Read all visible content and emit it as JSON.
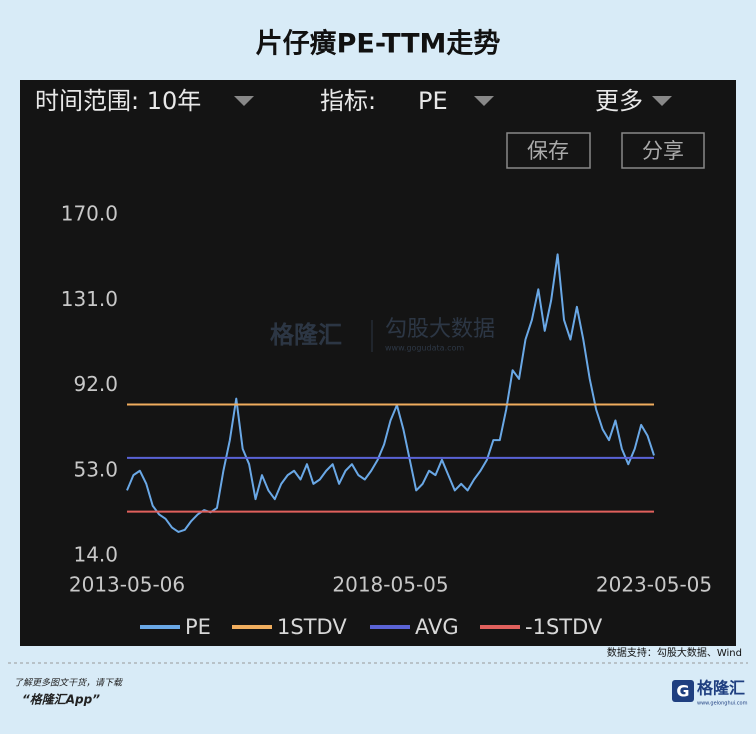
{
  "title": "片仔癀PE-TTM走势",
  "controls": {
    "range_label": "时间范围: 10年",
    "metric_label": "指标:",
    "metric_value": "PE",
    "more": "更多",
    "save": "保存",
    "share": "分享"
  },
  "chart_data": {
    "type": "line",
    "categories": [
      "2013-05-06",
      null,
      null,
      null,
      null,
      null,
      null,
      null,
      null,
      null,
      null,
      null,
      null,
      null,
      null,
      null,
      null,
      null,
      null,
      null,
      null,
      null,
      null,
      null,
      null,
      null,
      null,
      null,
      null,
      null,
      null,
      null,
      null,
      null,
      null,
      null,
      null,
      null,
      null,
      null,
      null,
      "2018-05-05",
      null,
      null,
      null,
      null,
      null,
      null,
      null,
      null,
      null,
      null,
      null,
      null,
      null,
      null,
      null,
      null,
      null,
      null,
      null,
      null,
      null,
      null,
      null,
      null,
      null,
      null,
      null,
      null,
      null,
      null,
      null,
      null,
      null,
      null,
      null,
      null,
      null,
      null,
      null,
      null,
      "2023-05-05"
    ],
    "series": [
      {
        "name": "PE",
        "color": "#6aa8e6",
        "values": [
          44,
          51,
          53,
          47,
          37,
          33,
          31,
          27,
          25,
          26,
          30,
          33,
          35,
          34,
          36,
          53,
          67,
          86,
          63,
          56,
          40,
          51,
          44,
          40,
          47,
          51,
          53,
          49,
          56,
          47,
          49,
          53,
          56,
          47,
          53,
          56,
          51,
          49,
          53,
          58,
          65,
          76,
          83,
          72,
          58,
          44,
          47,
          53,
          51,
          58,
          51,
          44,
          47,
          44,
          49,
          53,
          58,
          67,
          67,
          81,
          99,
          95,
          113,
          122,
          136,
          117,
          131,
          152,
          122,
          113,
          128,
          113,
          95,
          81,
          72,
          67,
          76,
          63,
          56,
          63,
          74,
          69,
          60
        ]
      },
      {
        "name": "1STDV",
        "color": "#f0ad5e",
        "value": 83.3
      },
      {
        "name": "AVG",
        "color": "#5a63d6",
        "value": 58.9
      },
      {
        "name": "-1STDV",
        "color": "#e0605c",
        "value": 34.3
      }
    ],
    "ylim": [
      14,
      170
    ],
    "yticks": [
      {
        "value": 14,
        "label": "14.0"
      },
      {
        "value": 53,
        "label": "53.0"
      },
      {
        "value": 92,
        "label": "92.0"
      },
      {
        "value": 131,
        "label": "131.0"
      },
      {
        "value": 170,
        "label": "170.0"
      }
    ],
    "grid": false,
    "source": "数据支持：勾股大数据、Wind"
  },
  "watermark": {
    "brand": "格隆汇",
    "partner": "勾股大数据",
    "url": "www.gogudata.com"
  },
  "footer": {
    "prompt": "了解更多图文干货，请下载",
    "app": "“格隆汇App”",
    "logo": "格隆汇",
    "logo_url": "www.gelonghui.com"
  }
}
